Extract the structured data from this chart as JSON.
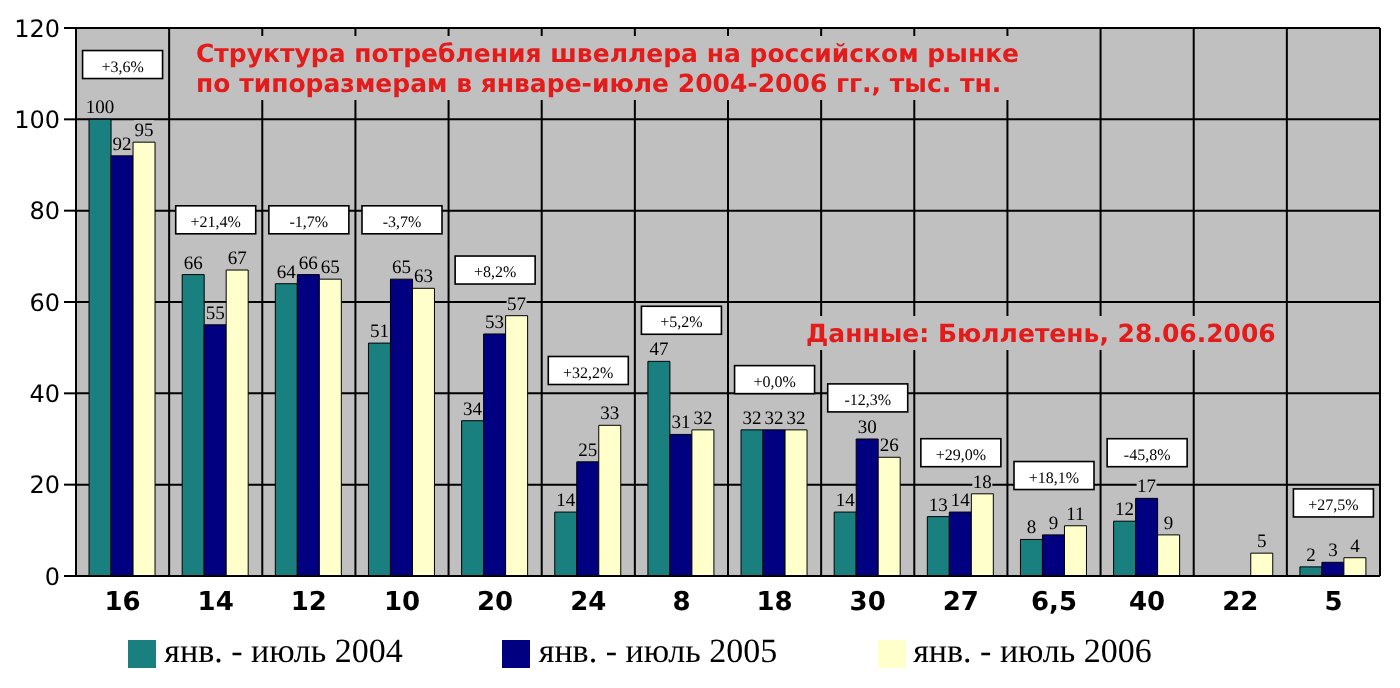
{
  "chart_data": {
    "type": "bar",
    "title": "Структура потребления швеллера на российском рынке\nпо типоразмерам в январе-июле 2004-2006 гг., тыс. тн.",
    "categories": [
      "16",
      "14",
      "12",
      "10",
      "20",
      "24",
      "8",
      "18",
      "30",
      "27",
      "6,5",
      "40",
      "22",
      "5"
    ],
    "series": [
      {
        "name": "янв. - июль 2004",
        "color": "#1a7f7f",
        "values": [
          100,
          66,
          64,
          51,
          34,
          14,
          47,
          32,
          14,
          13,
          8,
          12,
          null,
          2
        ]
      },
      {
        "name": "янв. - июль 2005",
        "color": "#000080",
        "values": [
          92,
          55,
          66,
          65,
          53,
          25,
          31,
          32,
          30,
          14,
          9,
          17,
          null,
          3
        ]
      },
      {
        "name": "янв. - июль 2006",
        "color": "#ffffcc",
        "values": [
          95,
          67,
          65,
          63,
          57,
          33,
          32,
          32,
          26,
          18,
          11,
          9,
          5,
          4
        ]
      }
    ],
    "ylim": [
      0,
      120
    ],
    "yticks": [
      0,
      20,
      40,
      60,
      80,
      100,
      120
    ],
    "grid": true,
    "legend": "bottom",
    "data_labels": true,
    "annotations": [
      {
        "text": "+3,6%",
        "x": "16",
        "y": 112
      },
      {
        "text": "+21,4%",
        "x": "14",
        "y": 78
      },
      {
        "text": "-1,7%",
        "x": "12",
        "y": 78
      },
      {
        "text": "-3,7%",
        "x": "10",
        "y": 78
      },
      {
        "text": "+8,2%",
        "x": "20",
        "y": 67
      },
      {
        "text": "+32,2%",
        "x": "24",
        "y": 45
      },
      {
        "text": "+5,2%",
        "x": "8",
        "y": 56
      },
      {
        "text": "+0,0%",
        "x": "18",
        "y": 43
      },
      {
        "text": "-12,3%",
        "x": "30",
        "y": 39
      },
      {
        "text": "+29,0%",
        "x": "27",
        "y": 27
      },
      {
        "text": "+18,1%",
        "x": "6,5",
        "y": 22
      },
      {
        "text": "-45,8%",
        "x": "40",
        "y": 27
      },
      {
        "text": "+27,5%",
        "x": "5",
        "y": 16
      },
      "Данные: Бюллетень, 28.06.2006"
    ]
  }
}
